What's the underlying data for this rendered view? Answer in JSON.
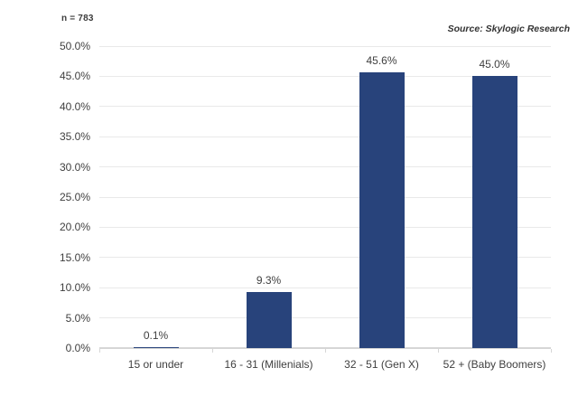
{
  "annotation": {
    "sample_size": "n = 783"
  },
  "source_label": "Source: Skylogic Research",
  "colors": {
    "bar": "#28437b",
    "gridline": "#e9e9e9",
    "axis_line": "#d6d6d6",
    "text": "#3f3f3f"
  },
  "chart_data": {
    "type": "bar",
    "title": "",
    "xlabel": "",
    "ylabel": "",
    "categories": [
      "15 or under",
      "16 - 31 (Millenials)",
      "32 - 51 (Gen X)",
      "52 + (Baby Boomers)"
    ],
    "values": [
      0.1,
      9.3,
      45.6,
      45.0
    ],
    "data_labels": [
      "0.1%",
      "9.3%",
      "45.6%",
      "45.0%"
    ],
    "ylim": [
      0,
      50
    ],
    "ytick_step": 5,
    "ytick_labels": [
      "0.0%",
      "5.0%",
      "10.0%",
      "15.0%",
      "20.0%",
      "25.0%",
      "30.0%",
      "35.0%",
      "40.0%",
      "45.0%",
      "50.0%"
    ],
    "grid": true,
    "legend_position": "none",
    "annotation": "n = 783",
    "source": "Source: Skylogic Research"
  }
}
